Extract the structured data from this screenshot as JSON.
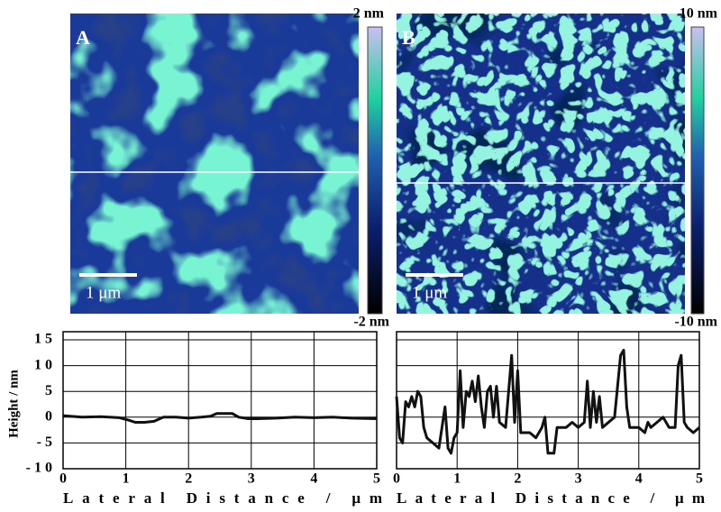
{
  "chart_data": [
    {
      "type": "line",
      "panel_label": "A",
      "scalebar_label": "1 μm",
      "colorbar_max": "2 nm",
      "colorbar_min": "-2 nm",
      "ylabel": "Height / nm",
      "xlabel": "Lateral Distance / μm",
      "color": "#111111",
      "x": [
        0,
        0.3,
        0.6,
        0.9,
        1.05,
        1.15,
        1.3,
        1.45,
        1.6,
        1.8,
        2.0,
        2.2,
        2.35,
        2.45,
        2.7,
        2.8,
        2.95,
        3.1,
        3.4,
        3.7,
        4.0,
        4.3,
        4.6,
        5.0
      ],
      "values": [
        0.3,
        0,
        0.1,
        -0.1,
        -0.6,
        -1,
        -1,
        -0.8,
        0,
        0,
        -0.2,
        0,
        0.2,
        0.7,
        0.7,
        0,
        -0.3,
        -0.3,
        -0.2,
        0,
        -0.1,
        0,
        -0.2,
        -0.3
      ],
      "xlim": [
        0,
        5
      ],
      "xticks": [
        0,
        1,
        2,
        3,
        4,
        5
      ],
      "ylim": [
        -10,
        15
      ],
      "yticks": [
        -10,
        -5,
        0,
        5,
        10,
        15
      ],
      "grid": true
    },
    {
      "type": "line",
      "panel_label": "B",
      "scalebar_label": "1 μm",
      "colorbar_max": "10 nm",
      "colorbar_min": "-10 nm",
      "xlabel": "Lateral Distance / μm",
      "color": "#111111",
      "x": [
        0,
        0.05,
        0.1,
        0.15,
        0.2,
        0.25,
        0.3,
        0.35,
        0.4,
        0.45,
        0.5,
        0.6,
        0.7,
        0.75,
        0.8,
        0.85,
        0.9,
        0.95,
        1.0,
        1.05,
        1.1,
        1.15,
        1.2,
        1.25,
        1.3,
        1.35,
        1.4,
        1.45,
        1.5,
        1.55,
        1.6,
        1.65,
        1.7,
        1.8,
        1.9,
        1.95,
        2.0,
        2.05,
        2.1,
        2.2,
        2.3,
        2.4,
        2.45,
        2.5,
        2.6,
        2.65,
        2.8,
        2.9,
        3.0,
        3.1,
        3.15,
        3.2,
        3.25,
        3.3,
        3.35,
        3.4,
        3.6,
        3.7,
        3.75,
        3.8,
        3.85,
        4.0,
        4.1,
        4.15,
        4.2,
        4.3,
        4.4,
        4.5,
        4.6,
        4.65,
        4.7,
        4.75,
        4.8,
        4.9,
        5.0
      ],
      "values": [
        4,
        -4,
        -5,
        3,
        2,
        4,
        2,
        5,
        4,
        -2,
        -4,
        -5,
        -6,
        -2,
        2,
        -6,
        -7,
        -4,
        -3,
        9,
        -2,
        5,
        4,
        7,
        3,
        8,
        2,
        -2,
        5,
        6,
        0,
        6,
        -1,
        -2,
        12,
        -1,
        9,
        -3,
        -3,
        -3,
        -4,
        -2,
        0,
        -7,
        -7,
        -2,
        -2,
        -1,
        -2,
        -1,
        7,
        -2,
        5,
        -1,
        4,
        -2,
        0,
        12,
        13,
        2,
        -2,
        -2,
        -3,
        -1,
        -2,
        -1,
        0,
        -2,
        -2,
        10,
        12,
        -1,
        -2,
        -3,
        -2
      ],
      "xlim": [
        0,
        5
      ],
      "xticks": [
        0,
        1,
        2,
        3,
        4,
        5
      ],
      "ylim": [
        -10,
        15
      ],
      "yticks": [
        -10,
        -5,
        0,
        5,
        10,
        15
      ],
      "grid": true
    }
  ]
}
